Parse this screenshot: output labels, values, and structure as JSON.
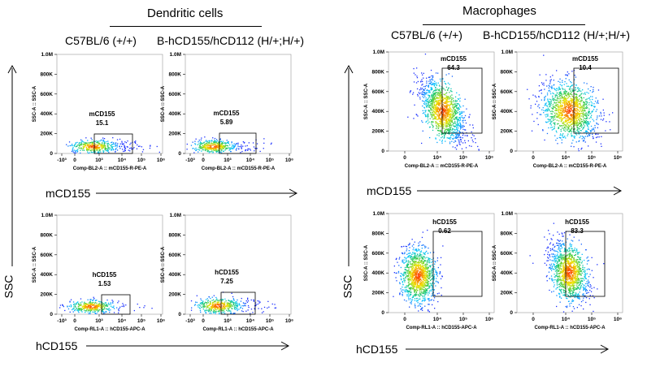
{
  "groups": [
    {
      "title": "Dendritic cells",
      "columns": [
        "C57BL/6 (+/+)",
        "B-hCD155/hCD112 (H/+;H/+)"
      ]
    },
    {
      "title": "Macrophages",
      "columns": [
        "C57BL/6 (+/+)",
        "B-hCD155/hCD112 (H/+;H/+)"
      ]
    }
  ],
  "row_labels": {
    "mouse": "mCD155",
    "human": "hCD155",
    "y": "SSC"
  },
  "y_ticks": [
    "1.0M",
    "800K",
    "600K",
    "400K",
    "200K",
    "0"
  ],
  "x_ticks_log": [
    "-10³",
    "0",
    "10³",
    "10⁴",
    "10⁵",
    "10⁶"
  ],
  "x_ticks_lin": [
    "0",
    "10⁴",
    "10⁵",
    "10⁶"
  ],
  "colors": {
    "gate": "#000000",
    "low": "#1f3cff",
    "mid": "#22c35a",
    "high": "#ff2a00"
  },
  "chart_data": [
    {
      "type": "scatter",
      "cell": "Dendritic cells",
      "strain": "C57BL/6 (+/+)",
      "gate": "mCD155",
      "value": "15.1",
      "xlabel": "Comp-BL2-A :: mCD155-R-PE-A",
      "ylabel": "SSC-A :: SSC-A",
      "ylim": [
        0,
        1000000
      ]
    },
    {
      "type": "scatter",
      "cell": "Dendritic cells",
      "strain": "B-hCD155/hCD112 (H/+;H/+)",
      "gate": "mCD155",
      "value": "5.89",
      "xlabel": "Comp-BL2-A :: mCD155-R-PE-A",
      "ylabel": "SSC-A :: SSC-A",
      "ylim": [
        0,
        1000000
      ]
    },
    {
      "type": "scatter",
      "cell": "Dendritic cells",
      "strain": "C57BL/6 (+/+)",
      "gate": "hCD155",
      "value": "1.53",
      "xlabel": "Comp-RL1-A :: hCD155-APC-A",
      "ylabel": "SSC-A :: SSC-A",
      "ylim": [
        0,
        1000000
      ]
    },
    {
      "type": "scatter",
      "cell": "Dendritic cells",
      "strain": "B-hCD155/hCD112 (H/+;H/+)",
      "gate": "hCD155",
      "value": "7.25",
      "xlabel": "Comp-RL1-A :: hCD155-APC-A",
      "ylabel": "SSC-A :: SSC-A",
      "ylim": [
        0,
        1000000
      ]
    },
    {
      "type": "scatter",
      "cell": "Macrophages",
      "strain": "C57BL/6 (+/+)",
      "gate": "mCD155",
      "value": "64.3",
      "xlabel": "Comp-BL2-A :: mCD155-R-PE-A",
      "ylabel": "SSC-A :: SSC-A",
      "ylim": [
        0,
        1000000
      ]
    },
    {
      "type": "scatter",
      "cell": "Macrophages",
      "strain": "B-hCD155/hCD112 (H/+;H/+)",
      "gate": "mCD155",
      "value": "10.4",
      "xlabel": "Comp-BL2-A :: mCD155-R-PE-A",
      "ylabel": "SSC-A :: SSC-A",
      "ylim": [
        0,
        1000000
      ]
    },
    {
      "type": "scatter",
      "cell": "Macrophages",
      "strain": "C57BL/6 (+/+)",
      "gate": "hCD155",
      "value": "0.62",
      "xlabel": "Comp-RL1-A :: hCD155-APC-A",
      "ylabel": "SSC-A :: SSC-A",
      "ylim": [
        0,
        1000000
      ]
    },
    {
      "type": "scatter",
      "cell": "Macrophages",
      "strain": "B-hCD155/hCD112 (H/+;H/+)",
      "gate": "hCD155",
      "value": "83.3",
      "xlabel": "Comp-RL1-A :: hCD155-APC-A",
      "ylabel": "SSC-A :: SSC-A",
      "ylim": [
        0,
        1000000
      ]
    }
  ]
}
